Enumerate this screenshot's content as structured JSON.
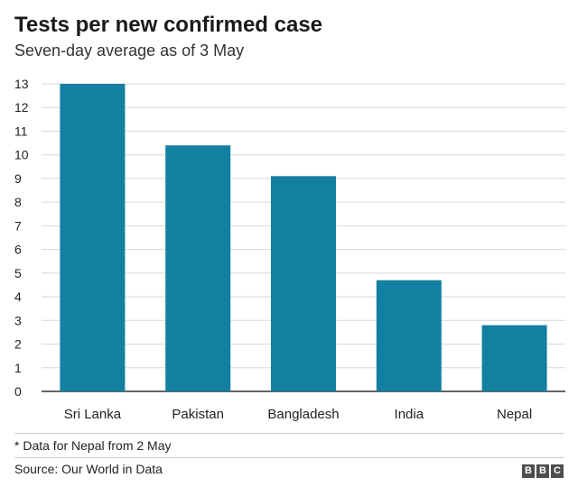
{
  "header": {
    "title": "Tests per new confirmed case",
    "subtitle": "Seven-day average as of 3 May"
  },
  "footer": {
    "footnote": "* Data for Nepal from 2 May",
    "source": "Source: Our World in Data",
    "logo_letters": [
      "B",
      "B",
      "C"
    ]
  },
  "colors": {
    "bar": "#1380a1",
    "grid": "#d8d8d8",
    "axis": "#333333"
  },
  "chart_data": {
    "type": "bar",
    "title": "Tests per new confirmed case",
    "subtitle": "Seven-day average as of 3 May",
    "categories": [
      "Sri Lanka",
      "Pakistan",
      "Bangladesh",
      "India",
      "Nepal"
    ],
    "values": [
      13.0,
      10.4,
      9.1,
      4.7,
      2.8
    ],
    "xlabel": "",
    "ylabel": "",
    "ylim": [
      0,
      13
    ],
    "yticks": [
      0,
      1,
      2,
      3,
      4,
      5,
      6,
      7,
      8,
      9,
      10,
      11,
      12,
      13
    ],
    "grid": true
  }
}
